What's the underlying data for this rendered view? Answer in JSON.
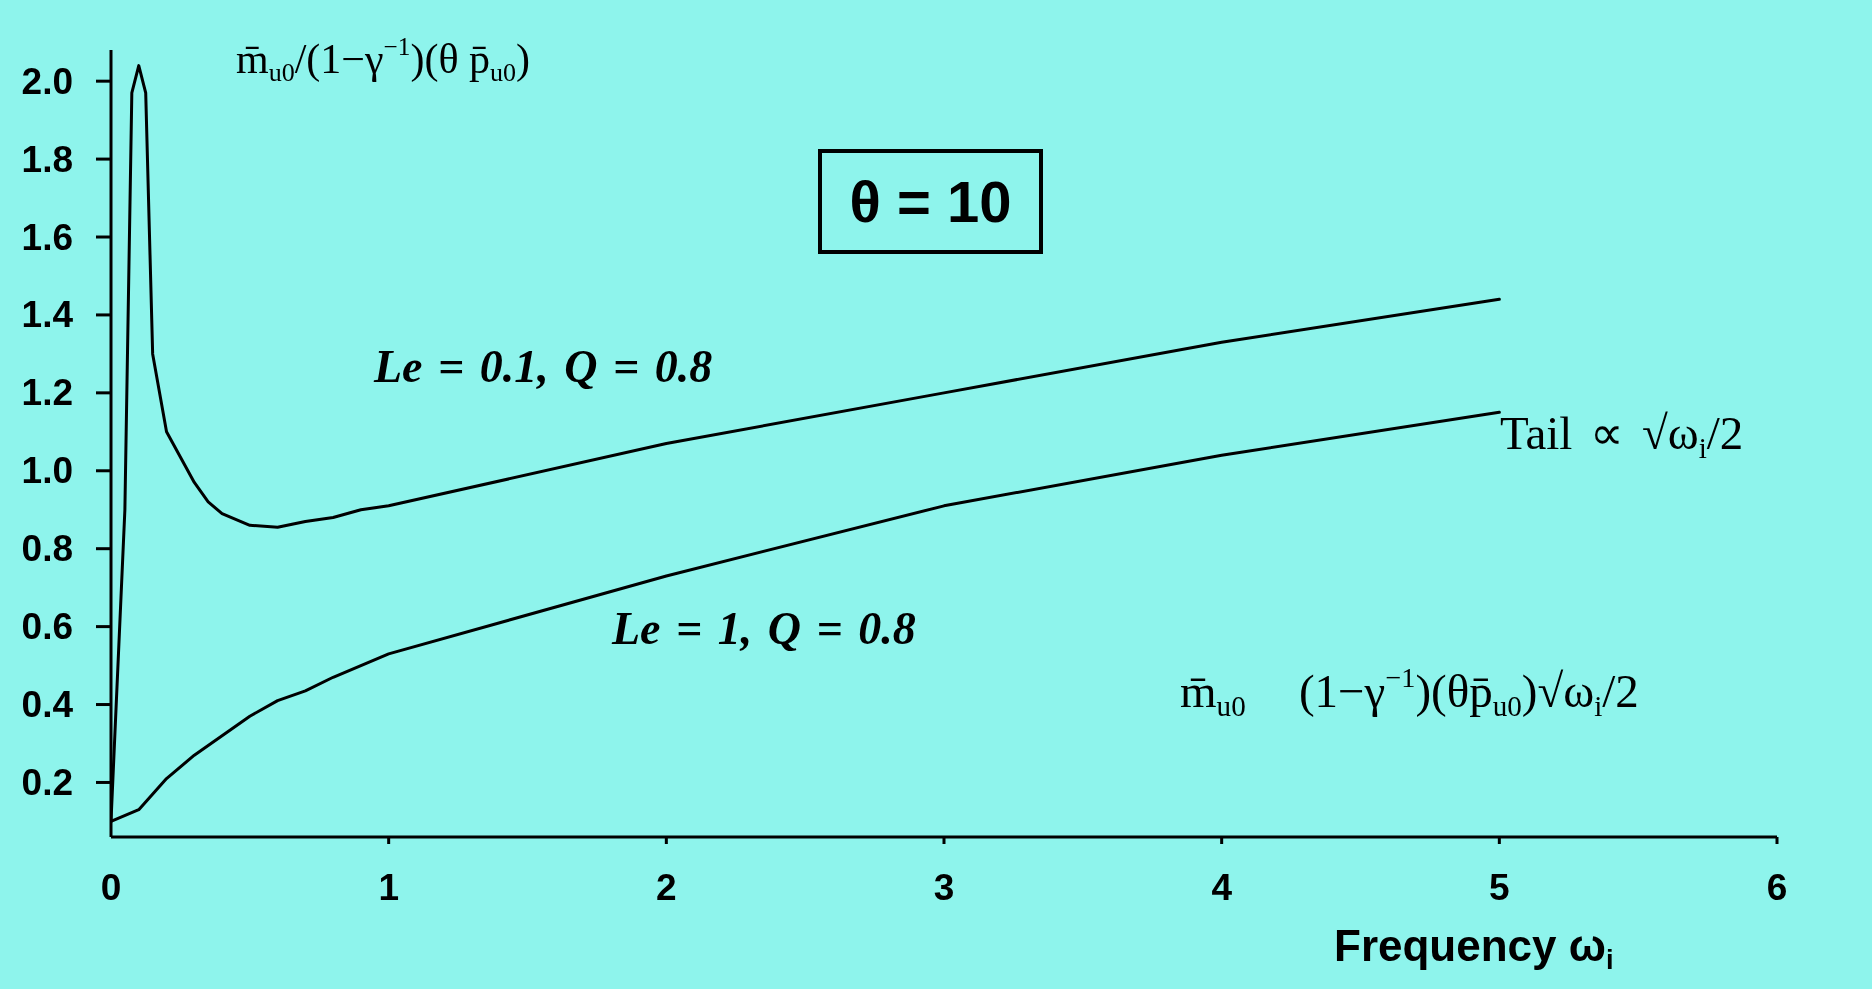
{
  "chart_data": {
    "type": "line",
    "ylabel": "m̄$_{u0}$/(1−γ$^{−1}$)(θ p̄$_{u0}$)",
    "xlabel": "Frequency ω$_{i}$",
    "annotations": [
      "θ = 10",
      "Tail ∝ √ω$_{i}$/2",
      "m̄$_{u0}$   (1−γ$^{−1}$)(θp̄$_{u0}$)√ω$_{i}$/2"
    ],
    "series": [
      {
        "name": "Le = 0.1, Q = 0.8",
        "color": "#000000",
        "x": [
          0,
          0.05,
          0.075,
          0.1,
          0.125,
          0.15,
          0.2,
          0.3,
          0.35,
          0.4,
          0.5,
          0.6,
          0.7,
          0.8,
          0.9,
          1,
          2,
          3,
          4,
          5
        ],
        "values": [
          0.1,
          0.9,
          1.97,
          2.04,
          1.97,
          1.3,
          1.1,
          0.97,
          0.92,
          0.89,
          0.86,
          0.855,
          0.87,
          0.88,
          0.9,
          0.91,
          1.07,
          1.2,
          1.33,
          1.44
        ]
      },
      {
        "name": "Le = 1, Q = 0.8",
        "color": "#000000",
        "x": [
          0,
          0.1,
          0.2,
          0.3,
          0.4,
          0.5,
          0.6,
          0.7,
          0.8,
          0.9,
          1,
          2,
          3,
          4,
          5
        ],
        "values": [
          0.1,
          0.13,
          0.21,
          0.27,
          0.32,
          0.37,
          0.41,
          0.435,
          0.47,
          0.5,
          0.53,
          0.73,
          0.91,
          1.04,
          1.15
        ]
      }
    ],
    "xlim": [
      0,
      6
    ],
    "xticks": [
      0,
      1,
      2,
      3,
      4,
      5,
      6
    ],
    "ylim": [
      0.06,
      2.08
    ],
    "yticks": [
      0.2,
      0.4,
      0.6,
      0.8,
      {
        "value": 1,
        "label": "1.0"
      },
      1.2,
      1.4,
      1.6,
      1.8,
      {
        "value": 2,
        "label": "2.0"
      }
    ],
    "line_style": "solid"
  }
}
